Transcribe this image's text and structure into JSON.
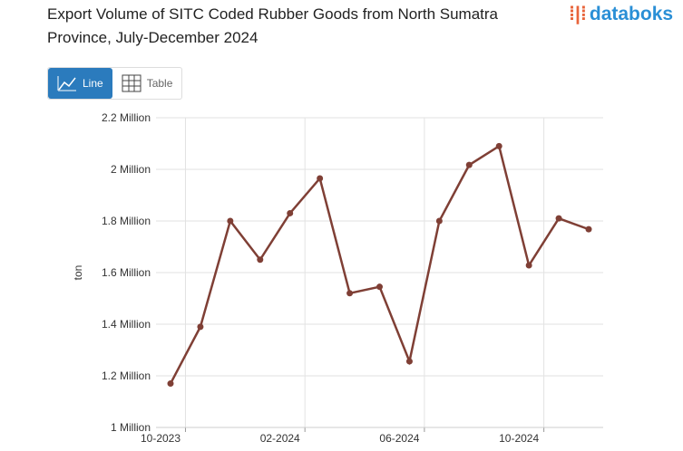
{
  "ui": {
    "logo": "databoks",
    "buttons": [
      "Line",
      "Table"
    ]
  },
  "chart_data": {
    "type": "line",
    "title": "Export Volume of SITC Coded Rubber Goods from North Sumatra Province, July-December 2024",
    "y_label": "ton",
    "categories": [
      "10-2023",
      null,
      null,
      null,
      "02-2024",
      null,
      null,
      null,
      "06-2024",
      null,
      null,
      null,
      "10-2024",
      null,
      null
    ],
    "series": [
      {
        "name": "ton",
        "color": "#7f3f35",
        "values": [
          1170000,
          1390000,
          1800000,
          1650000,
          1830000,
          1965000,
          1520000,
          1545000,
          1256000,
          1800000,
          2017000,
          2090000,
          1628000,
          1810000,
          1768000
        ]
      }
    ],
    "ylim": [
      1000000,
      2200000
    ],
    "yticks": [
      {
        "value": 1000000,
        "label": "1 Million"
      },
      {
        "value": 1200000,
        "label": "1.2 Million"
      },
      {
        "value": 1400000,
        "label": "1.4 Million"
      },
      {
        "value": 1600000,
        "label": "1.6 Million"
      },
      {
        "value": 1800000,
        "label": "1.8 Million"
      },
      {
        "value": 2000000,
        "label": "2 Million"
      },
      {
        "value": 2200000,
        "label": "2.2 Million"
      }
    ],
    "grid": true
  }
}
